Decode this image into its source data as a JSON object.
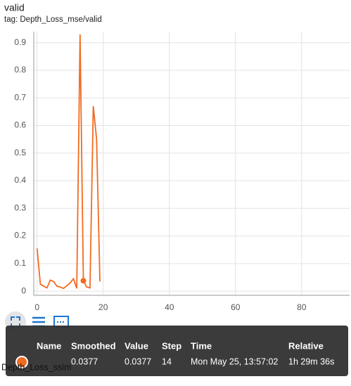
{
  "header": {
    "title": "valid",
    "tag": "tag: Depth_Loss_mse/valid"
  },
  "chart_data": {
    "type": "line",
    "x": [
      0,
      1,
      2,
      3,
      4,
      5,
      6,
      7,
      8,
      9,
      10,
      11,
      12,
      13,
      14,
      15,
      16,
      17,
      18,
      19
    ],
    "series": [
      {
        "color": "#f26b21",
        "values": [
          0.155,
          0.025,
          0.018,
          0.012,
          0.04,
          0.035,
          0.018,
          0.015,
          0.01,
          0.02,
          0.03,
          0.045,
          0.01,
          0.93,
          0.0377,
          0.015,
          0.012,
          0.67,
          0.55,
          0.035
        ]
      }
    ],
    "xlim": [
      -1,
      94.5
    ],
    "ylim": [
      -0.015,
      0.94
    ],
    "xticks": [
      0,
      20,
      40,
      60,
      80
    ],
    "yticks": [
      0,
      0.1,
      0.2,
      0.3,
      0.4,
      0.5,
      0.6,
      0.7,
      0.8,
      0.9
    ],
    "grid": true
  },
  "tooltip": {
    "headers": [
      "Name",
      "Smoothed",
      "Value",
      "Step",
      "Time",
      "Relative"
    ],
    "smoothed": 0.0377,
    "value": 0.0377,
    "step": 14,
    "time": "Mon May 25, 13:57:02",
    "relative": "1h 29m 36s"
  },
  "behind_label": "Depth_Loss_ssim"
}
